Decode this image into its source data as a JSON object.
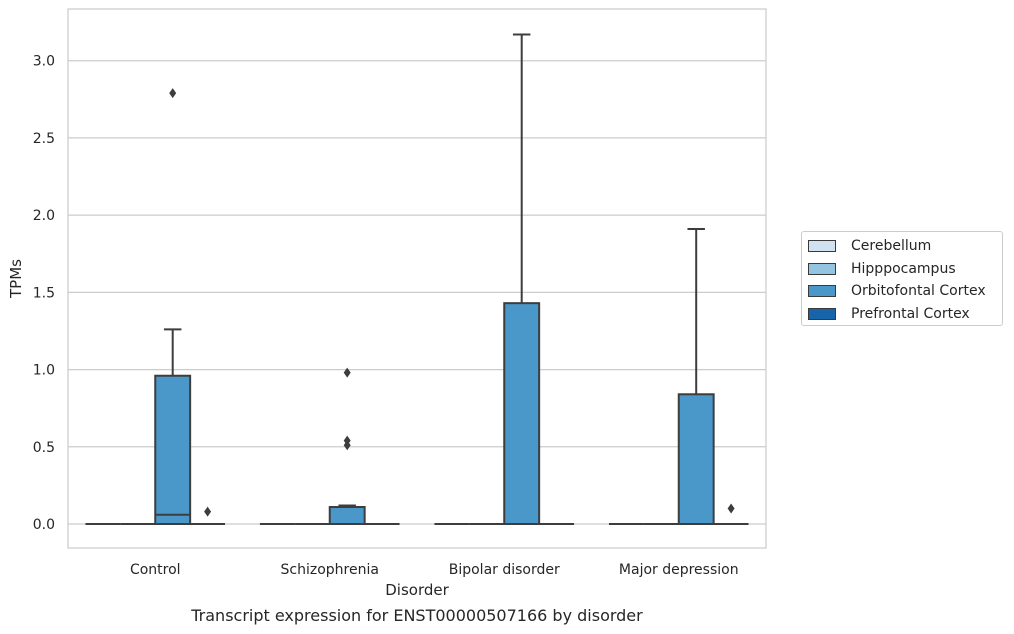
{
  "caption": "Transcript expression for ENST00000507166 by disorder",
  "chart_data": {
    "type": "box",
    "title": "",
    "xlabel": "Disorder",
    "ylabel": "TPMs",
    "ylim": [
      -0.15,
      3.3
    ],
    "yticks": [
      0.0,
      0.5,
      1.0,
      1.5,
      2.0,
      2.5,
      3.0
    ],
    "ytick_labels": [
      "0.0",
      "0.5",
      "1.0",
      "1.5",
      "2.0",
      "2.5",
      "3.0"
    ],
    "grid": "horizontal",
    "legend_position": "outside right",
    "categories": [
      "Control",
      "Schizophrenia",
      "Bipolar disorder",
      "Major depression"
    ],
    "series": [
      {
        "name": "Cerebellum",
        "color": "#d0e1f2",
        "boxes": [
          {
            "q1": 0,
            "median": 0,
            "q3": 0,
            "whislo": 0,
            "whishi": 0,
            "fliers": []
          },
          {
            "q1": 0,
            "median": 0,
            "q3": 0,
            "whislo": 0,
            "whishi": 0,
            "fliers": []
          },
          {
            "q1": 0,
            "median": 0,
            "q3": 0,
            "whislo": 0,
            "whishi": 0,
            "fliers": []
          },
          {
            "q1": 0,
            "median": 0,
            "q3": 0,
            "whislo": 0,
            "whishi": 0,
            "fliers": []
          }
        ]
      },
      {
        "name": "Hipppocampus",
        "color": "#94c4df",
        "boxes": [
          {
            "q1": 0,
            "median": 0,
            "q3": 0,
            "whislo": 0,
            "whishi": 0,
            "fliers": []
          },
          {
            "q1": 0,
            "median": 0,
            "q3": 0,
            "whislo": 0,
            "whishi": 0,
            "fliers": []
          },
          {
            "q1": 0,
            "median": 0,
            "q3": 0,
            "whislo": 0,
            "whishi": 0,
            "fliers": []
          },
          {
            "q1": 0,
            "median": 0,
            "q3": 0,
            "whislo": 0,
            "whishi": 0,
            "fliers": []
          }
        ]
      },
      {
        "name": "Orbitofontal Cortex",
        "color": "#4a98c9",
        "boxes": [
          {
            "q1": 0,
            "median": 0.06,
            "q3": 0.96,
            "whislo": 0,
            "whishi": 1.26,
            "fliers": [
              2.79
            ]
          },
          {
            "q1": 0,
            "median": 0,
            "q3": 0.11,
            "whislo": 0,
            "whishi": 0.12,
            "fliers": [
              0.51,
              0.54,
              0.98
            ]
          },
          {
            "q1": 0,
            "median": 0,
            "q3": 1.43,
            "whislo": 0,
            "whishi": 3.17,
            "fliers": []
          },
          {
            "q1": 0,
            "median": 0,
            "q3": 0.84,
            "whislo": 0,
            "whishi": 1.91,
            "fliers": []
          }
        ]
      },
      {
        "name": "Prefrontal Cortex",
        "color": "#1764ab",
        "boxes": [
          {
            "q1": 0,
            "median": 0,
            "q3": 0,
            "whislo": 0,
            "whishi": 0,
            "fliers": [
              0.08
            ]
          },
          {
            "q1": 0,
            "median": 0,
            "q3": 0,
            "whislo": 0,
            "whishi": 0,
            "fliers": []
          },
          {
            "q1": 0,
            "median": 0,
            "q3": 0,
            "whislo": 0,
            "whishi": 0,
            "fliers": []
          },
          {
            "q1": 0,
            "median": 0,
            "q3": 0,
            "whislo": 0,
            "whishi": 0,
            "fliers": [
              0.1
            ]
          }
        ]
      }
    ]
  }
}
